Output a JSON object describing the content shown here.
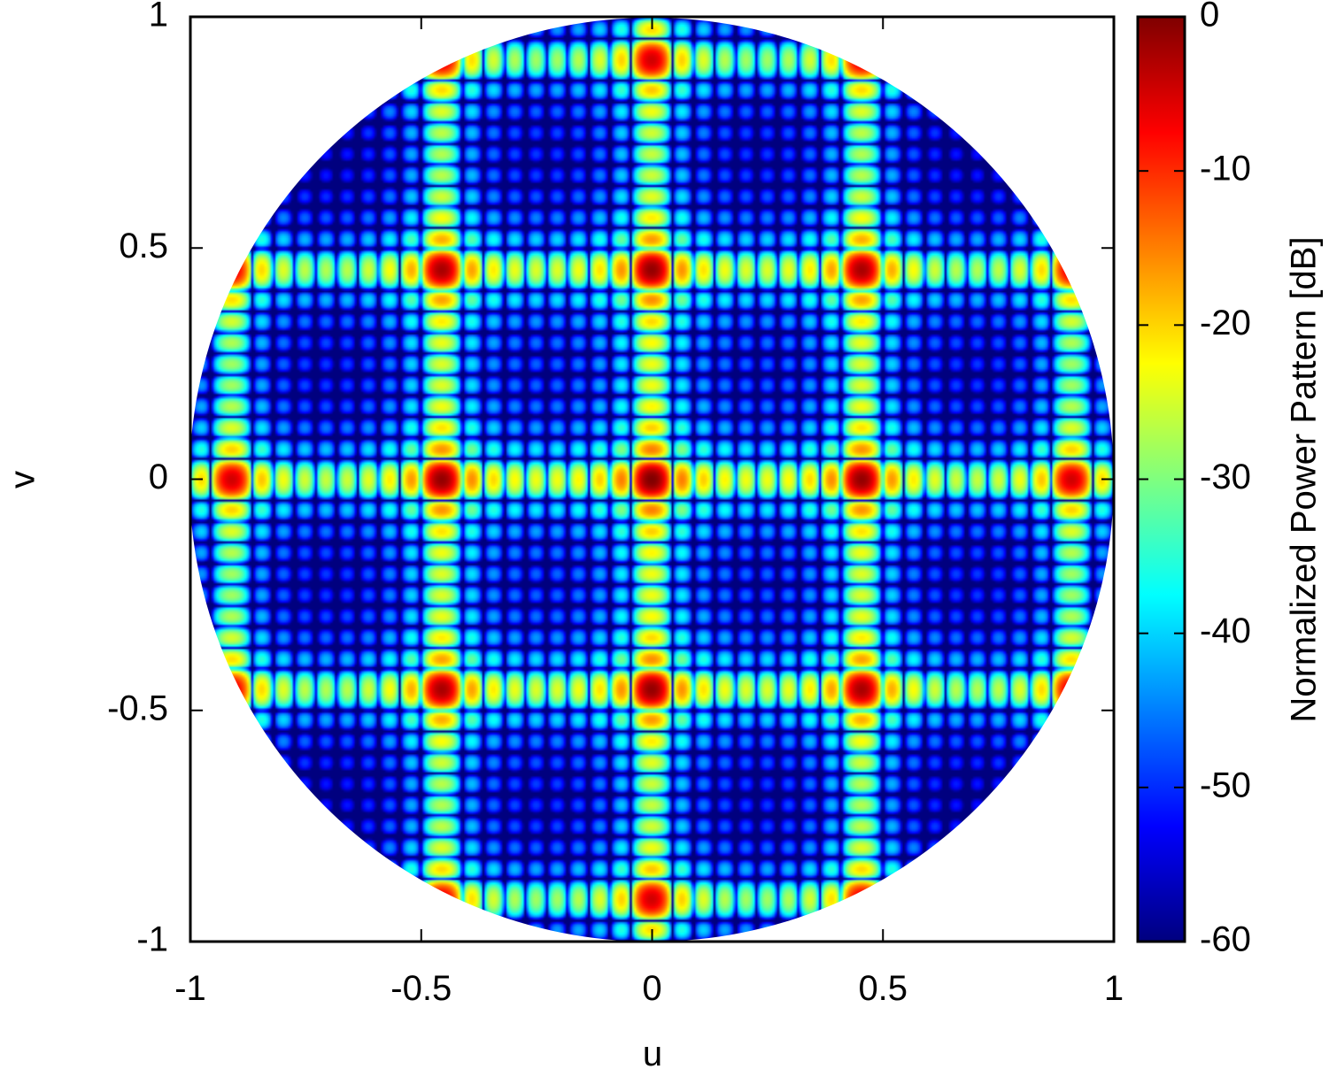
{
  "chart_data": {
    "type": "heatmap",
    "title": "",
    "xlabel": "u",
    "ylabel": "v",
    "xlim": [
      -1,
      1
    ],
    "ylim": [
      -1,
      1
    ],
    "xticks": [
      "-1",
      "-0.5",
      "0",
      "0.5",
      "1"
    ],
    "yticks": [
      "1",
      "0.5",
      "0",
      "-0.5",
      "-1"
    ],
    "domain": "unit circle u^2 + v^2 <= 1",
    "peak": {
      "u": 0,
      "v": 0,
      "value": 0
    },
    "colorbar": {
      "label": "Normalized Power Pattern [dB]",
      "range": [
        -60,
        0
      ],
      "ticks": [
        "0",
        "-10",
        "-20",
        "-30",
        "-40",
        "-50",
        "-60"
      ],
      "colors": [
        "#00007f",
        "#0000ff",
        "#007fff",
        "#00ffff",
        "#7fff7f",
        "#ffff00",
        "#ff7f00",
        "#ff0000",
        "#7f0000"
      ]
    },
    "grid": false
  }
}
